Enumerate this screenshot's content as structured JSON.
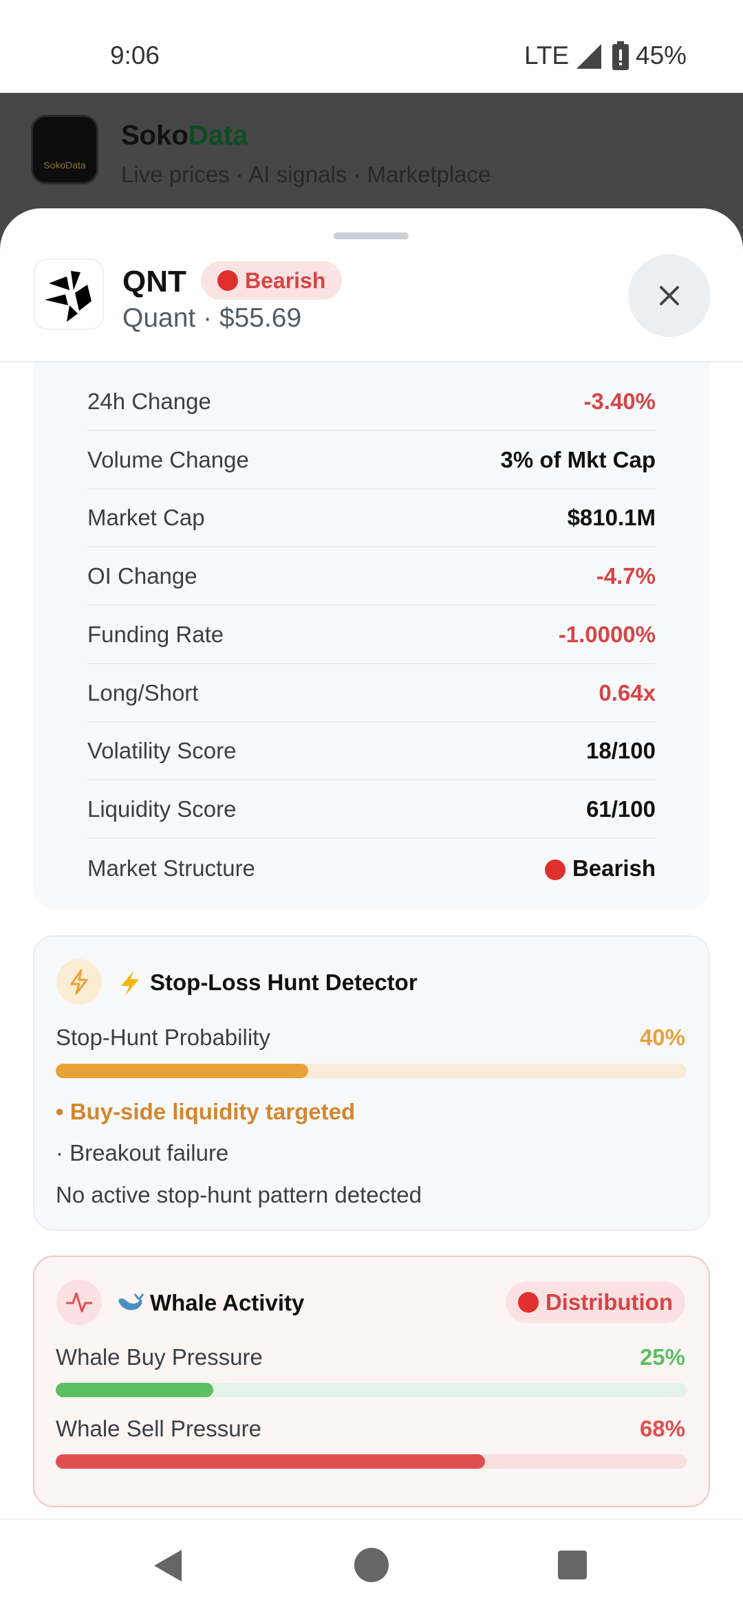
{
  "status_bar": {
    "time": "9:06",
    "network": "LTE",
    "battery": "45%"
  },
  "app_header": {
    "brand_part1": "Soko",
    "brand_part2": "Data",
    "logo_text": "SokoData",
    "subtitle": "Live prices · AI signals · Marketplace"
  },
  "sheet": {
    "symbol": "QNT",
    "badge": "Bearish",
    "subtitle": "Quant · $55.69",
    "metrics": [
      {
        "label": "24h Change",
        "value": "-3.40%",
        "color": "#d64545"
      },
      {
        "label": "Volume Change",
        "value": "3% of Mkt Cap",
        "color": "#111111"
      },
      {
        "label": "Market Cap",
        "value": "$810.1M",
        "color": "#111111"
      },
      {
        "label": "OI Change",
        "value": "-4.7%",
        "color": "#d64545"
      },
      {
        "label": "Funding Rate",
        "value": "-1.0000%",
        "color": "#d64545"
      },
      {
        "label": "Long/Short",
        "value": "0.64x",
        "color": "#d64545"
      },
      {
        "label": "Volatility Score",
        "value": "18/100",
        "color": "#111111"
      },
      {
        "label": "Liquidity Score",
        "value": "61/100",
        "color": "#111111"
      },
      {
        "label": "Market Structure",
        "value": "Bearish",
        "color": "#111111"
      }
    ],
    "stop_hunt": {
      "title": "Stop-Loss Hunt Detector",
      "probability_label": "Stop-Hunt Probability",
      "probability": {
        "value": 40,
        "label": "40%"
      },
      "color": "#e8a23a",
      "signal": "• Buy-side liquidity targeted",
      "note": "· Breakout failure",
      "status": "No active stop-hunt pattern detected"
    },
    "whale": {
      "title": "Whale Activity",
      "badge": "Distribution",
      "bars": [
        {
          "label": "Whale Buy Pressure",
          "value": 25,
          "value_label": "25%",
          "color": "#5cbf64",
          "track": "#e4f3e5"
        },
        {
          "label": "Whale Sell Pressure",
          "value": 68,
          "value_label": "68%",
          "color": "#df4f4f",
          "track": "#f9dede"
        }
      ]
    }
  }
}
